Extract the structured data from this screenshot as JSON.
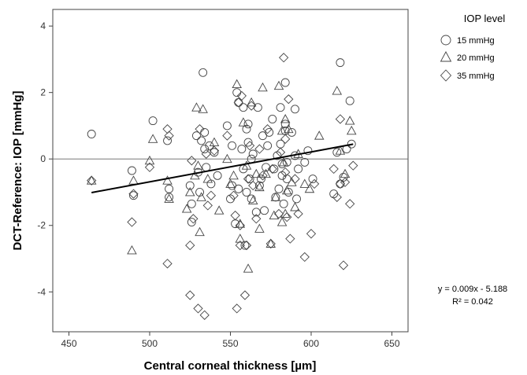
{
  "chart_data": {
    "type": "scatter",
    "xlabel": "Central corneal thickness [µm]",
    "ylabel": "DCT-Reference: IOP [mmHg]",
    "xlim": [
      440,
      660
    ],
    "ylim": [
      -5.2,
      4.5
    ],
    "x_ticks": [
      450,
      500,
      550,
      600,
      650
    ],
    "y_ticks": [
      -4,
      -2,
      0,
      2,
      4
    ],
    "x_tick_labels": [
      "450",
      "500",
      "550",
      "600",
      "650"
    ],
    "y_tick_labels": [
      "-4",
      "-2",
      "0",
      "2",
      "4"
    ],
    "reference_line_y": 0,
    "legend": {
      "title": "IOP level",
      "position": "top-right-outside",
      "entries": [
        {
          "label": "15 mmHg",
          "marker": "circle"
        },
        {
          "label": "20 mmHg",
          "marker": "triangle"
        },
        {
          "label": "35 mmHg",
          "marker": "diamond"
        }
      ]
    },
    "fit": {
      "slope": 0.009,
      "intercept": -5.188,
      "x_range": [
        464,
        626
      ],
      "equation_text": "y = 0.009x - 5.188",
      "r2_text": "R² = 0.042"
    },
    "series": [
      {
        "name": "15 mmHg",
        "marker": "circle",
        "points": [
          [
            464,
            0.75
          ],
          [
            489,
            -0.35
          ],
          [
            490,
            -1.1
          ],
          [
            502,
            1.15
          ],
          [
            511,
            0.55
          ],
          [
            512,
            -1.15
          ],
          [
            512,
            -0.9
          ],
          [
            525,
            -0.8
          ],
          [
            526,
            -1.35
          ],
          [
            526,
            -1.9
          ],
          [
            529,
            0.7
          ],
          [
            530,
            -0.4
          ],
          [
            531,
            -1.0
          ],
          [
            532,
            0.55
          ],
          [
            533,
            2.6
          ],
          [
            534,
            0.8
          ],
          [
            534,
            0.3
          ],
          [
            535,
            -0.25
          ],
          [
            537,
            0.4
          ],
          [
            538,
            -0.75
          ],
          [
            540,
            0.2
          ],
          [
            542,
            -0.5
          ],
          [
            548,
            1.0
          ],
          [
            550,
            -1.2
          ],
          [
            551,
            0.4
          ],
          [
            551,
            -0.8
          ],
          [
            553,
            -1.95
          ],
          [
            554,
            2.0
          ],
          [
            555,
            1.7
          ],
          [
            555,
            -0.9
          ],
          [
            557,
            0.3
          ],
          [
            558,
            1.55
          ],
          [
            558,
            -0.3
          ],
          [
            559,
            -2.6
          ],
          [
            560,
            0.9
          ],
          [
            560,
            -1.0
          ],
          [
            561,
            1.05
          ],
          [
            561,
            0.5
          ],
          [
            562,
            -0.6
          ],
          [
            563,
            -1.2
          ],
          [
            563,
            0.0
          ],
          [
            564,
            0.15
          ],
          [
            566,
            -1.6
          ],
          [
            567,
            1.55
          ],
          [
            568,
            -0.8
          ],
          [
            569,
            -0.6
          ],
          [
            570,
            0.7
          ],
          [
            571,
            -1.55
          ],
          [
            572,
            -0.25
          ],
          [
            573,
            0.4
          ],
          [
            574,
            0.8
          ],
          [
            576,
            1.2
          ],
          [
            577,
            -0.3
          ],
          [
            578,
            -1.15
          ],
          [
            579,
            0.1
          ],
          [
            580,
            -0.9
          ],
          [
            581,
            1.55
          ],
          [
            581,
            0.45
          ],
          [
            582,
            -0.5
          ],
          [
            582,
            -0.15
          ],
          [
            583,
            -1.35
          ],
          [
            584,
            2.3
          ],
          [
            584,
            1.05
          ],
          [
            584,
            0.85
          ],
          [
            585,
            -0.1
          ],
          [
            585,
            -0.6
          ],
          [
            586,
            -1.0
          ],
          [
            588,
            0.8
          ],
          [
            590,
            1.5
          ],
          [
            590,
            0.1
          ],
          [
            591,
            -1.2
          ],
          [
            592,
            -0.3
          ],
          [
            596,
            -0.1
          ],
          [
            598,
            0.25
          ],
          [
            601,
            -0.6
          ],
          [
            614,
            -1.05
          ],
          [
            616,
            0.2
          ],
          [
            618,
            -0.75
          ],
          [
            618,
            2.9
          ],
          [
            620,
            -0.55
          ],
          [
            622,
            0.3
          ],
          [
            624,
            1.75
          ],
          [
            625,
            0.45
          ]
        ]
      },
      {
        "name": "20 mmHg",
        "marker": "triangle",
        "points": [
          [
            464,
            -0.65
          ],
          [
            489,
            -2.75
          ],
          [
            490,
            -0.65
          ],
          [
            500,
            -0.05
          ],
          [
            502,
            0.6
          ],
          [
            511,
            -0.65
          ],
          [
            512,
            -1.2
          ],
          [
            523,
            -1.5
          ],
          [
            525,
            -1.0
          ],
          [
            528,
            -0.5
          ],
          [
            529,
            1.55
          ],
          [
            530,
            -0.2
          ],
          [
            531,
            -2.2
          ],
          [
            532,
            -1.15
          ],
          [
            533,
            1.5
          ],
          [
            536,
            -0.6
          ],
          [
            540,
            0.5
          ],
          [
            543,
            -1.55
          ],
          [
            548,
            0.0
          ],
          [
            550,
            -0.75
          ],
          [
            552,
            -0.5
          ],
          [
            554,
            2.25
          ],
          [
            556,
            -1.95
          ],
          [
            556,
            -2.4
          ],
          [
            558,
            1.1
          ],
          [
            560,
            -0.2
          ],
          [
            561,
            -3.3
          ],
          [
            563,
            1.7
          ],
          [
            564,
            -1.25
          ],
          [
            566,
            -0.45
          ],
          [
            568,
            -2.1
          ],
          [
            568,
            -0.85
          ],
          [
            570,
            2.15
          ],
          [
            572,
            -0.45
          ],
          [
            575,
            -2.55
          ],
          [
            577,
            -1.7
          ],
          [
            578,
            -1.15
          ],
          [
            580,
            2.2
          ],
          [
            582,
            0.85
          ],
          [
            582,
            -1.9
          ],
          [
            583,
            -0.1
          ],
          [
            584,
            1.2
          ],
          [
            584,
            -1.65
          ],
          [
            585,
            -0.95
          ],
          [
            586,
            0.9
          ],
          [
            588,
            -0.7
          ],
          [
            590,
            -1.45
          ],
          [
            592,
            0.15
          ],
          [
            596,
            -0.75
          ],
          [
            599,
            -0.9
          ],
          [
            605,
            0.7
          ],
          [
            616,
            2.05
          ],
          [
            618,
            0.25
          ],
          [
            621,
            -0.45
          ],
          [
            624,
            1.15
          ],
          [
            625,
            0.85
          ]
        ]
      },
      {
        "name": "35 mmHg",
        "marker": "diamond",
        "points": [
          [
            464,
            -0.65
          ],
          [
            489,
            -1.9
          ],
          [
            490,
            -1.05
          ],
          [
            500,
            -0.25
          ],
          [
            511,
            0.9
          ],
          [
            511,
            -3.15
          ],
          [
            512,
            0.7
          ],
          [
            525,
            -2.6
          ],
          [
            525,
            -4.1
          ],
          [
            526,
            -0.05
          ],
          [
            527,
            -1.8
          ],
          [
            530,
            -4.5
          ],
          [
            531,
            0.9
          ],
          [
            534,
            -4.7
          ],
          [
            535,
            0.15
          ],
          [
            536,
            -1.4
          ],
          [
            538,
            -1.1
          ],
          [
            540,
            0.25
          ],
          [
            548,
            0.7
          ],
          [
            552,
            -1.1
          ],
          [
            553,
            -1.7
          ],
          [
            554,
            -4.5
          ],
          [
            555,
            1.7
          ],
          [
            556,
            -2.0
          ],
          [
            556,
            -2.6
          ],
          [
            557,
            1.9
          ],
          [
            559,
            -4.1
          ],
          [
            560,
            -2.6
          ],
          [
            561,
            -0.6
          ],
          [
            562,
            0.4
          ],
          [
            563,
            1.6
          ],
          [
            564,
            -0.8
          ],
          [
            566,
            -1.8
          ],
          [
            568,
            0.3
          ],
          [
            570,
            -0.5
          ],
          [
            573,
            0.9
          ],
          [
            575,
            -2.55
          ],
          [
            576,
            -0.3
          ],
          [
            580,
            -1.65
          ],
          [
            581,
            0.2
          ],
          [
            583,
            3.05
          ],
          [
            584,
            0.6
          ],
          [
            584,
            -0.4
          ],
          [
            585,
            -1.75
          ],
          [
            586,
            1.8
          ],
          [
            587,
            -2.4
          ],
          [
            590,
            -0.6
          ],
          [
            592,
            -1.65
          ],
          [
            596,
            -2.95
          ],
          [
            600,
            -2.25
          ],
          [
            602,
            -0.75
          ],
          [
            614,
            -0.3
          ],
          [
            616,
            -1.15
          ],
          [
            618,
            -0.75
          ],
          [
            618,
            1.2
          ],
          [
            620,
            -3.2
          ],
          [
            621,
            -0.7
          ],
          [
            624,
            -1.35
          ],
          [
            626,
            -0.2
          ]
        ]
      }
    ]
  }
}
